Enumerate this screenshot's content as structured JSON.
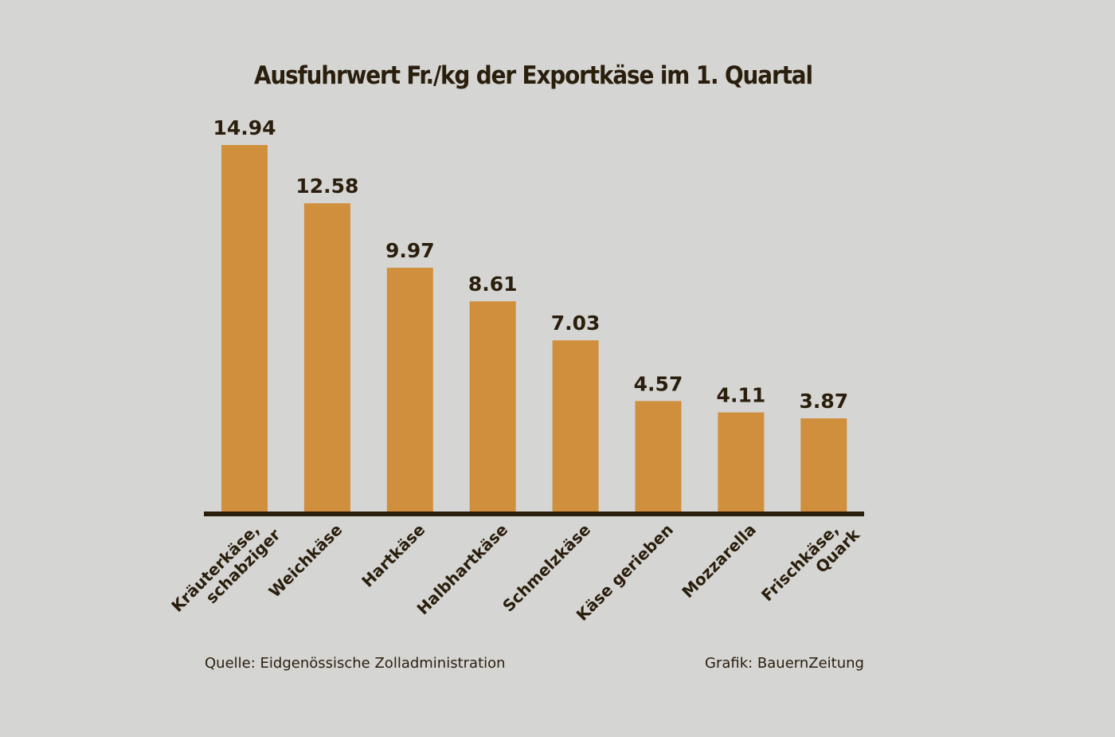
{
  "chart_data": {
    "type": "bar",
    "title": "Ausfuhrwert Fr./kg der Exportkäse im 1. Quartal",
    "categories": [
      [
        "Kräuterkäse,",
        "schabziger"
      ],
      [
        "Weichkäse"
      ],
      [
        "Hartkäse"
      ],
      [
        "Halbhartkäse"
      ],
      [
        "Schmelzkäse"
      ],
      [
        "Käse gerieben"
      ],
      [
        "Mozzarella"
      ],
      [
        "Frischkäse,",
        "Quark"
      ]
    ],
    "values": [
      14.94,
      12.58,
      9.97,
      8.61,
      7.03,
      4.57,
      4.11,
      3.87
    ],
    "data_labels": [
      "14.94",
      "12.58",
      "9.97",
      "8.61",
      "7.03",
      "4.57",
      "4.11",
      "3.87"
    ],
    "xlabel": "",
    "ylabel": "",
    "ylim": [
      0,
      15
    ],
    "grid": false,
    "bar_color": "#d08f3c",
    "axis_color": "#2a1e0c",
    "background": "#d5d5d3"
  },
  "footer": {
    "source": "Quelle: Eidgenössische Zolladministration",
    "credit": "Grafik: BauernZeitung"
  }
}
